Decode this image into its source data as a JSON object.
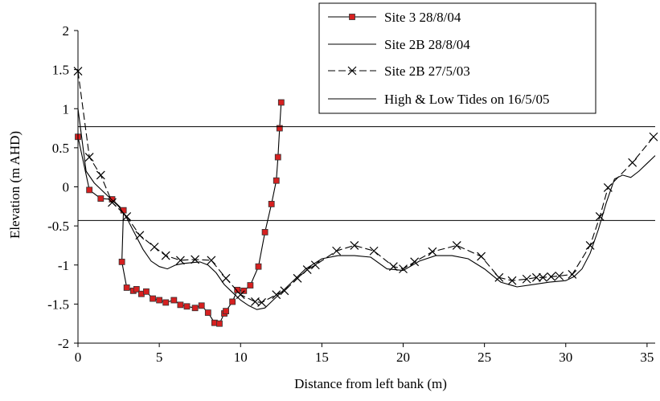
{
  "chart_data": {
    "type": "line",
    "title": "",
    "xlabel": "Distance from left bank (m)",
    "ylabel": "Elevation (m AHD)",
    "xlim": [
      0,
      35.5
    ],
    "ylim": [
      -2,
      2
    ],
    "xticks": [
      0,
      5,
      10,
      15,
      20,
      25,
      30,
      35
    ],
    "yticks": [
      -2,
      -1.5,
      -1,
      -0.5,
      0,
      0.5,
      1,
      1.5,
      2
    ],
    "xtick_labels": [
      "0",
      "5",
      "10",
      "15",
      "20",
      "25",
      "30",
      "35"
    ],
    "ytick_labels": [
      "-2",
      "-1.5",
      "-1",
      "-0.5",
      "0",
      "0.5",
      "1",
      "1.5",
      "2"
    ],
    "grid": false,
    "legend_position": "top-right",
    "series": [
      {
        "name": "Site 3 28/8/04",
        "style": "line-square-markers",
        "color": "#000000",
        "marker_color": "#d62020",
        "x": [
          0,
          0.7,
          1.4,
          2.1,
          2.8,
          2.7,
          3.0,
          3.4,
          3.6,
          3.9,
          4.2,
          4.6,
          5.0,
          5.4,
          5.9,
          6.3,
          6.7,
          7.2,
          7.6,
          8.0,
          8.4,
          8.7,
          9.0,
          9.1,
          9.5,
          9.8,
          10.2,
          10.6,
          11.1,
          11.5,
          11.9,
          12.2,
          12.3,
          12.4,
          12.5
        ],
        "y": [
          0.64,
          -0.04,
          -0.15,
          -0.16,
          -0.3,
          -0.96,
          -1.29,
          -1.33,
          -1.31,
          -1.37,
          -1.34,
          -1.43,
          -1.45,
          -1.48,
          -1.45,
          -1.51,
          -1.53,
          -1.55,
          -1.52,
          -1.61,
          -1.74,
          -1.75,
          -1.62,
          -1.59,
          -1.47,
          -1.32,
          -1.33,
          -1.26,
          -1.02,
          -0.58,
          -0.22,
          0.08,
          0.38,
          0.75,
          1.08
        ]
      },
      {
        "name": "Site 2B 28/8/04",
        "style": "line",
        "color": "#000000",
        "x": [
          0,
          0.5,
          1,
          1.5,
          2,
          2.5,
          3,
          3.5,
          4,
          4.5,
          5,
          5.5,
          6,
          6.5,
          7,
          7.5,
          8,
          8.5,
          9,
          9.5,
          10,
          10.5,
          11,
          11.5,
          12,
          13,
          14,
          15,
          16,
          17,
          18,
          19,
          20,
          21,
          22,
          23,
          24,
          25,
          26,
          27,
          28,
          29,
          30,
          30.5,
          31,
          31.5,
          32,
          32.5,
          33,
          33.5,
          34,
          34.5,
          35,
          35.5
        ],
        "y": [
          1.0,
          0.2,
          0.05,
          -0.05,
          -0.15,
          -0.25,
          -0.4,
          -0.6,
          -0.8,
          -0.95,
          -1.02,
          -1.05,
          -1.0,
          -0.98,
          -0.97,
          -0.96,
          -1.0,
          -1.1,
          -1.25,
          -1.35,
          -1.45,
          -1.52,
          -1.57,
          -1.55,
          -1.45,
          -1.25,
          -1.05,
          -0.92,
          -0.88,
          -0.88,
          -0.9,
          -1.05,
          -1.07,
          -0.95,
          -0.88,
          -0.88,
          -0.92,
          -1.05,
          -1.22,
          -1.28,
          -1.25,
          -1.22,
          -1.2,
          -1.15,
          -1.05,
          -0.85,
          -0.55,
          -0.2,
          0.1,
          0.15,
          0.12,
          0.2,
          0.3,
          0.4
        ]
      },
      {
        "name": "Site 2B 27/5/03",
        "style": "dashed-x-markers",
        "color": "#000000",
        "x": [
          0,
          0.7,
          1.4,
          2.1,
          3.0,
          3.8,
          4.7,
          5.4,
          6.3,
          7.2,
          8.2,
          9.1,
          10.0,
          10.9,
          11.3,
          12.2,
          12.7,
          13.5,
          14.1,
          14.6,
          15.9,
          17.0,
          18.2,
          19.4,
          20.0,
          20.7,
          21.8,
          23.3,
          24.8,
          25.9,
          26.7,
          27.6,
          28.2,
          28.6,
          29.1,
          29.6,
          30.4,
          31.5,
          32.1,
          32.6,
          34.1,
          35.4
        ],
        "y": [
          1.48,
          0.38,
          0.15,
          -0.2,
          -0.38,
          -0.62,
          -0.77,
          -0.88,
          -0.94,
          -0.93,
          -0.94,
          -1.17,
          -1.38,
          -1.47,
          -1.48,
          -1.38,
          -1.33,
          -1.17,
          -1.06,
          -1.0,
          -0.82,
          -0.75,
          -0.82,
          -1.02,
          -1.05,
          -0.96,
          -0.83,
          -0.75,
          -0.89,
          -1.16,
          -1.2,
          -1.18,
          -1.16,
          -1.16,
          -1.15,
          -1.14,
          -1.12,
          -0.75,
          -0.38,
          -0.01,
          0.31,
          0.64
        ]
      },
      {
        "name": "High & Low Tides on 16/5/05",
        "style": "horizontal-lines",
        "color": "#000000",
        "values": [
          0.77,
          -0.43
        ]
      }
    ]
  }
}
